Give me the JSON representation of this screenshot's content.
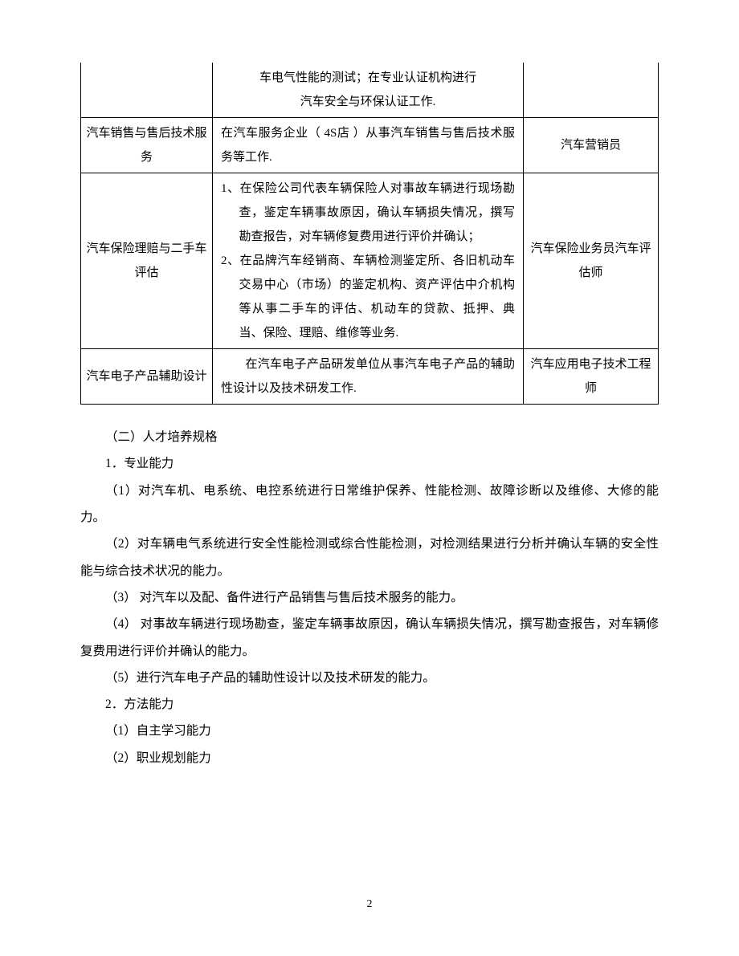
{
  "table": {
    "rows": [
      {
        "c1": "",
        "c2_lines": [
          "车电气性能的测试；在专业认证机构进行",
          "汽车安全与环保认证工作."
        ],
        "c3": "",
        "no_top": true,
        "c2_center": true
      },
      {
        "c1": "汽车销售与售后技术服务",
        "c2_lines": [
          "在汽车服务企业（ 4S店 ）从事汽车销售与售后技术服务等工作."
        ],
        "c3": "汽车营销员",
        "c2_center": false
      },
      {
        "c1": "汽车保险理赔与二手车评估",
        "c2_hanglist": [
          {
            "lead": "1、",
            "text": "在保险公司代表车辆保险人对事故车辆进行现场勘查，鉴定车辆事故原因，确认车辆损失情况，撰写勘查报告，对车辆修复费用进行评价并确认；"
          },
          {
            "lead": "2、",
            "text": "在品牌汽车经销商、车辆检测鉴定所、各旧机动车交易中心（市场）的鉴定机构、资产评估中介机构等从事二手车的评估、机动车的贷款、抵押、典当、保险、理赔、维修等业务."
          }
        ],
        "c3": "汽车保险业务员汽车评估师",
        "c2_center": false
      },
      {
        "c1": "汽车电子产品辅助设计",
        "c2_lines": [
          "　　在汽车电子产品研发单位从事汽车电子产品的辅助性设计以及技术研发工作."
        ],
        "c3": "汽车应用电子技术工程师",
        "c2_center": false
      }
    ]
  },
  "body": {
    "heading": "（二）人才培养规格",
    "section1_title": "1．专业能力",
    "section1_items": [
      "（1）对汽车机、电系统、电控系统进行日常维护保养、性能检测、故障诊断以及维修、大修的能力。",
      "（2）对车辆电气系统进行安全性能检测或综合性能检测，对检测结果进行分析并确认车辆的安全性能与综合技术状况的能力。",
      "（3） 对汽车以及配、备件进行产品销售与售后技术服务的能力。",
      "（4） 对事故车辆进行现场勘查，鉴定车辆事故原因，确认车辆损失情况，撰写勘查报告，对车辆修复费用进行评价并确认的能力。",
      "（5）进行汽车电子产品的辅助性设计以及技术研发的能力。"
    ],
    "section2_title": "2．方法能力",
    "section2_items": [
      "（1）自主学习能力",
      "（2）职业规划能力"
    ]
  },
  "page_number": "2"
}
